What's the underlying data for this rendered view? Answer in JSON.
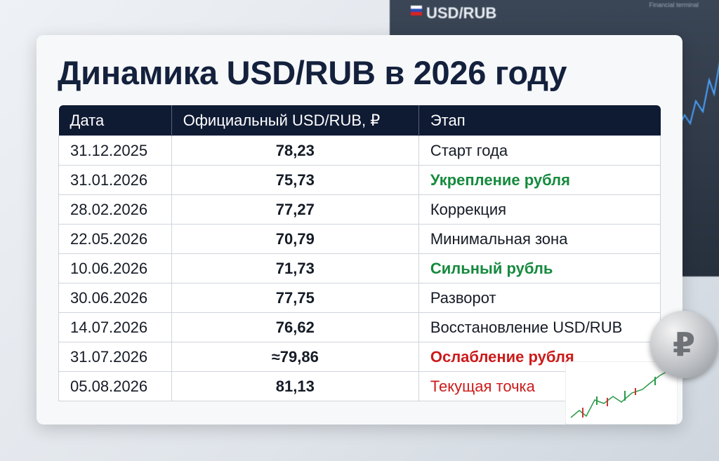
{
  "header": {
    "title": "Динамика USD/RUB в 2026 году"
  },
  "background": {
    "terminal_title": "USD/RUB",
    "terminal_label": "Financial terminal",
    "coin_symbol": "₽"
  },
  "table": {
    "columns": [
      "Дата",
      "Официальный USD/RUB, ₽",
      "Этап"
    ],
    "rows": [
      [
        "31.12.2025",
        "78,23",
        "Старт года"
      ],
      [
        "31.01.2026",
        "75,73",
        "Укрепление рубля"
      ],
      [
        "28.02.2026",
        "77,27",
        "Коррекция"
      ],
      [
        "22.05.2026",
        "70,79",
        "Минимальная зона"
      ],
      [
        "10.06.2026",
        "71,73",
        "Сильный рубль"
      ],
      [
        "30.06.2026",
        "77,75",
        "Разворот"
      ],
      [
        "14.07.2026",
        "76,62",
        "Восстановление USD/RUB"
      ],
      [
        "31.07.2026",
        "≈79,86",
        "Ослабление рубля"
      ],
      [
        "05.08.2026",
        "81,13",
        "Текущая точка"
      ]
    ]
  }
}
